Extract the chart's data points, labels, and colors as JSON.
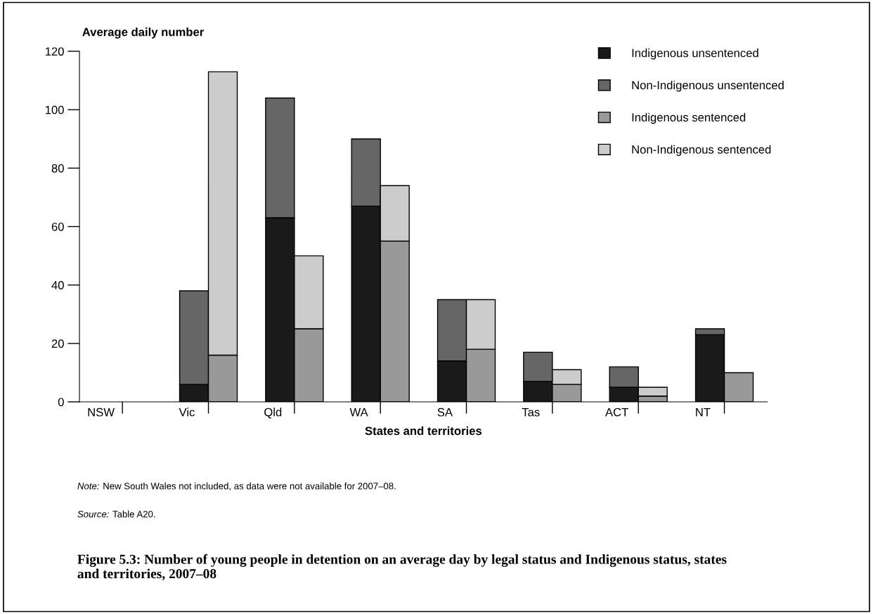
{
  "chart_data": {
    "type": "bar",
    "stacked": true,
    "title": "Figure 5.3: Number of young people in detention on an average day by legal status and Indigenous status, states and territories, 2007–08",
    "ylabel": "Average daily number",
    "xlabel": "States and territories",
    "categories": [
      "NSW",
      null,
      "Vic",
      null,
      "Qld",
      null,
      "WA",
      null,
      "SA",
      null,
      "Tas",
      null,
      "ACT",
      null,
      "NT",
      null
    ],
    "series": [
      {
        "name": "Indigenous unsentenced",
        "color": "#1a1a1a",
        "values": [
          null,
          null,
          6,
          null,
          63,
          null,
          67,
          null,
          14,
          null,
          7,
          null,
          5,
          null,
          23,
          null
        ]
      },
      {
        "name": "Non-Indigenous unsentenced",
        "color": "#666666",
        "values": [
          null,
          null,
          32,
          null,
          41,
          null,
          23,
          null,
          21,
          null,
          10,
          null,
          7,
          null,
          2,
          null
        ]
      },
      {
        "name": "Indigenous sentenced",
        "color": "#999999",
        "values": [
          null,
          null,
          null,
          16,
          null,
          25,
          null,
          55,
          null,
          18,
          null,
          6,
          null,
          2,
          null,
          10
        ]
      },
      {
        "name": "Non-Indigenous sentenced",
        "color": "#cccccc",
        "values": [
          null,
          null,
          null,
          97,
          null,
          25,
          null,
          19,
          null,
          17,
          null,
          5,
          null,
          3,
          null,
          null
        ]
      }
    ],
    "ylim": [
      0,
      120
    ],
    "yticks": [
      0,
      20,
      40,
      60,
      80,
      100,
      120
    ],
    "grid": false,
    "legend": "top right",
    "annotations": [
      "Note: New South Wales not included, as data were not available for 2007–08.",
      "Source: Table A20."
    ]
  }
}
